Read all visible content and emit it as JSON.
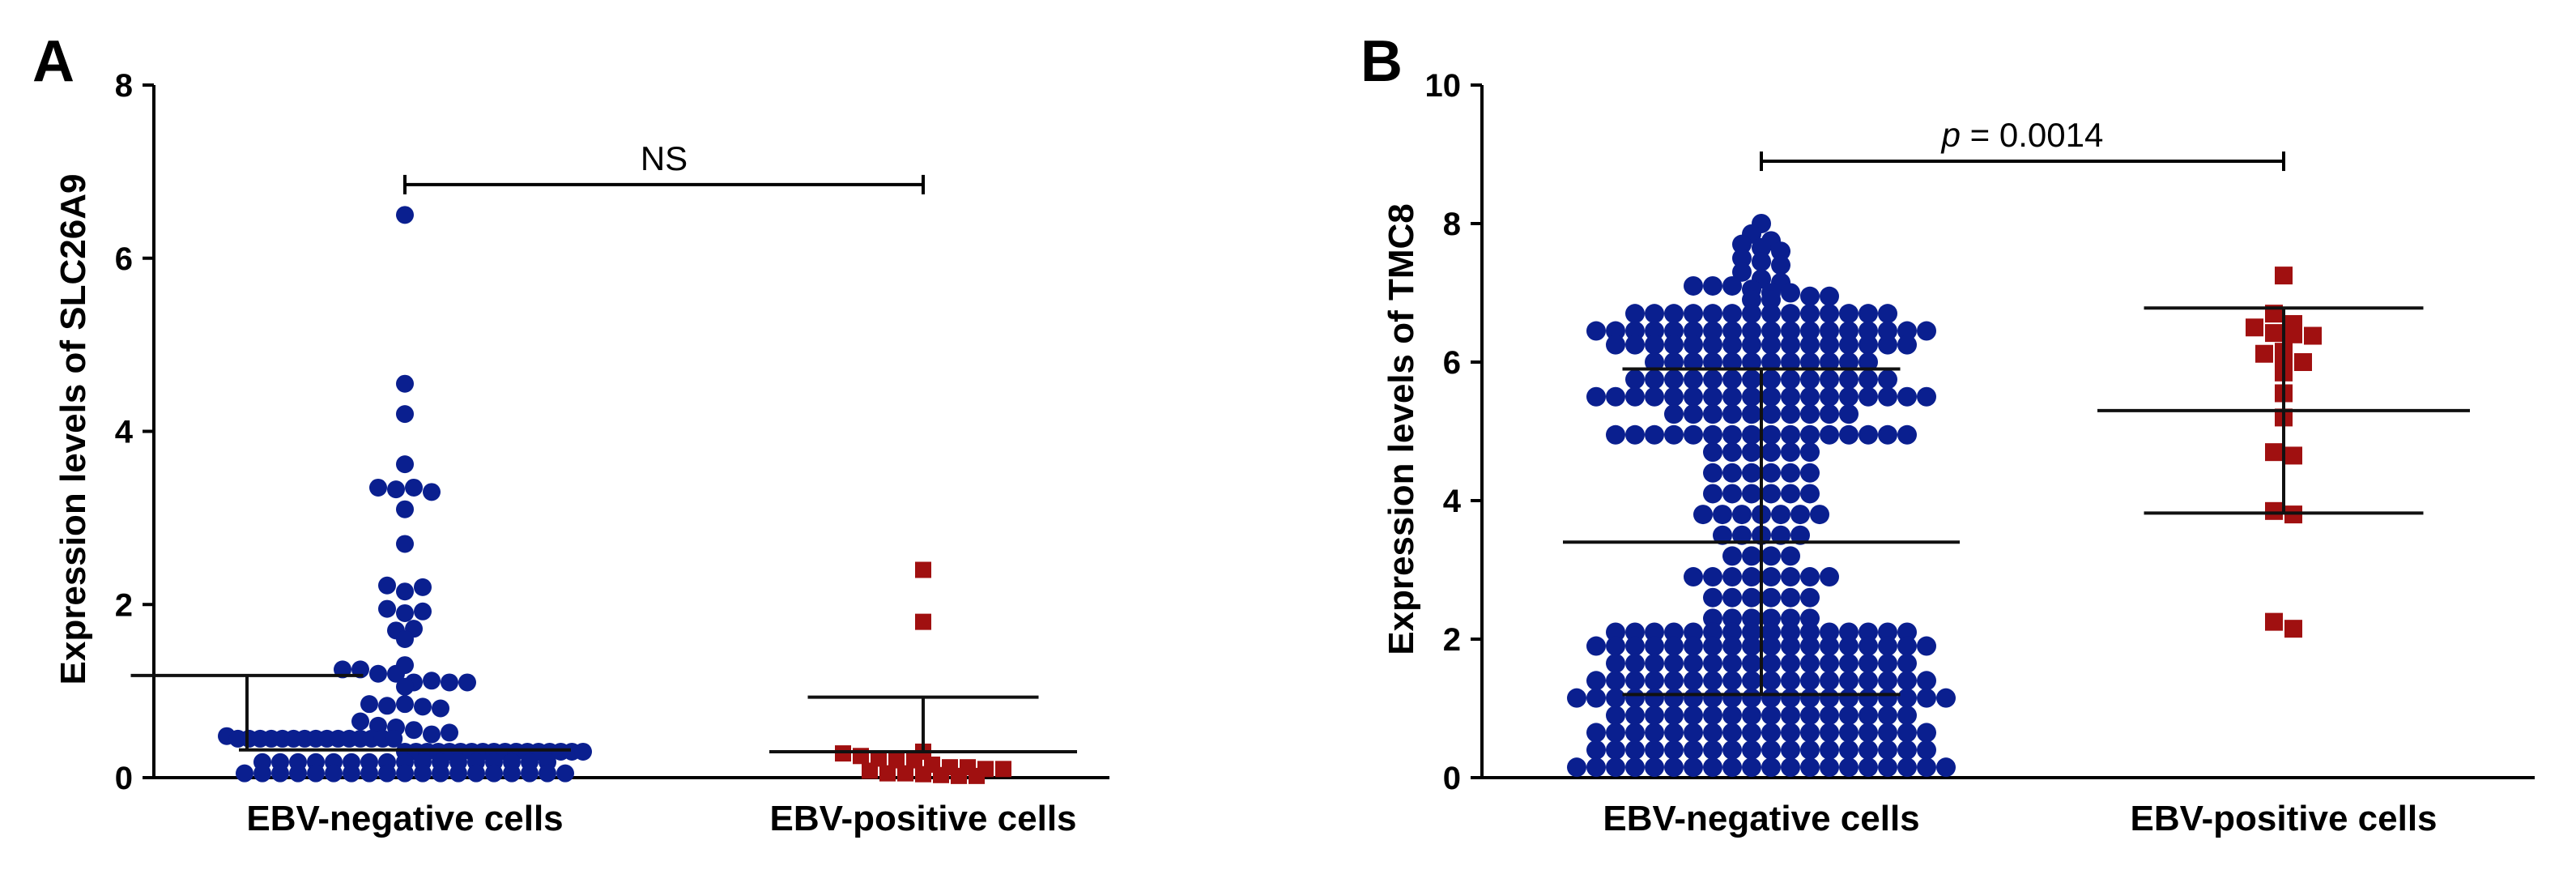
{
  "figure": {
    "panels": [
      {
        "letter": "A",
        "significance": {
          "prefix": "",
          "text": "NS"
        }
      },
      {
        "letter": "B",
        "significance": {
          "prefix": "p",
          "text": " = 0.0014"
        }
      }
    ]
  },
  "chart_data": [
    {
      "type": "scatter",
      "subtype": "dot-plot-with-mean-and-sd",
      "title": "",
      "xlabel": "",
      "ylabel": "Expression levels of SLC26A9",
      "ylim": [
        0,
        8
      ],
      "yticks": [
        0,
        2,
        4,
        6,
        8
      ],
      "categories": [
        "EBV-negative cells",
        "EBV-positive cells"
      ],
      "grid": false,
      "legend": "none",
      "series": [
        {
          "category": "EBV-negative cells",
          "marker": "circle",
          "color": "#0a1f8f",
          "mean": 0.32,
          "sd_upper": 1.18,
          "values": [
            6.5,
            4.55,
            4.2,
            3.62,
            3.35,
            3.33,
            3.35,
            3.3,
            3.1,
            2.7,
            2.22,
            2.15,
            2.2,
            1.95,
            1.9,
            1.92,
            1.7,
            1.72,
            1.6,
            1.3,
            1.25,
            1.25,
            1.2,
            1.2,
            1.1,
            1.12,
            1.1,
            1.05,
            1.1,
            0.85,
            0.83,
            0.85,
            0.82,
            0.8,
            0.65,
            0.6,
            0.58,
            0.55,
            0.5,
            0.52,
            0.48,
            0.45,
            0.45,
            0.45,
            0.45,
            0.45,
            0.45,
            0.45,
            0.45,
            0.45,
            0.45,
            0.45,
            0.45,
            0.45,
            0.45,
            0.45,
            0.3,
            0.3,
            0.3,
            0.3,
            0.3,
            0.3,
            0.3,
            0.3,
            0.3,
            0.3,
            0.3,
            0.3,
            0.3,
            0.3,
            0.3,
            0.3,
            0.3,
            0.18,
            0.18,
            0.18,
            0.18,
            0.18,
            0.18,
            0.18,
            0.18,
            0.18,
            0.18,
            0.18,
            0.18,
            0.18,
            0.18,
            0.18,
            0.18,
            0.18,
            0.05,
            0.05,
            0.05,
            0.05,
            0.05,
            0.05,
            0.05,
            0.05,
            0.05,
            0.05,
            0.05,
            0.05,
            0.05,
            0.05,
            0.05,
            0.05,
            0.05,
            0.05,
            0.05
          ]
        },
        {
          "category": "EBV-positive cells",
          "marker": "square",
          "color": "#a01010",
          "mean": 0.3,
          "sd_upper": 0.93,
          "values": [
            2.4,
            1.8,
            0.3,
            0.28,
            0.25,
            0.22,
            0.2,
            0.2,
            0.15,
            0.12,
            0.12,
            0.1,
            0.1,
            0.08,
            0.05,
            0.05,
            0.04,
            0.03,
            0.02,
            0.02
          ]
        }
      ],
      "significance": {
        "between": [
          "EBV-negative cells",
          "EBV-positive cells"
        ],
        "label": "NS",
        "y": 6.85
      }
    },
    {
      "type": "scatter",
      "subtype": "dot-plot-with-mean-and-sd",
      "title": "",
      "xlabel": "",
      "ylabel": "Expression levels of TMC8",
      "ylim": [
        0,
        10
      ],
      "yticks": [
        0,
        2,
        4,
        6,
        8,
        10
      ],
      "categories": [
        "EBV-negative cells",
        "EBV-positive cells"
      ],
      "grid": false,
      "legend": "none",
      "series": [
        {
          "category": "EBV-negative cells",
          "marker": "circle",
          "color": "#0a1f8f",
          "mean": 3.4,
          "sd_lower": 1.2,
          "sd_upper": 5.9,
          "values": [
            8.0,
            7.85,
            7.75,
            7.7,
            7.65,
            7.6,
            7.5,
            7.45,
            7.4,
            7.3,
            7.2,
            7.15,
            7.1,
            7.1,
            7.1,
            7.05,
            7.0,
            7.0,
            6.95,
            6.95,
            6.9,
            6.9,
            6.7,
            6.7,
            6.7,
            6.7,
            6.7,
            6.7,
            6.7,
            6.7,
            6.7,
            6.7,
            6.7,
            6.7,
            6.7,
            6.7,
            6.45,
            6.45,
            6.45,
            6.45,
            6.45,
            6.45,
            6.45,
            6.45,
            6.45,
            6.45,
            6.45,
            6.45,
            6.45,
            6.45,
            6.45,
            6.45,
            6.45,
            6.45,
            6.25,
            6.25,
            6.25,
            6.25,
            6.25,
            6.25,
            6.25,
            6.25,
            6.25,
            6.25,
            6.25,
            6.25,
            6.25,
            6.25,
            6.25,
            6.25,
            6.0,
            6.0,
            6.0,
            6.0,
            6.0,
            6.0,
            6.0,
            6.0,
            6.0,
            6.0,
            6.0,
            6.0,
            5.75,
            5.75,
            5.75,
            5.75,
            5.75,
            5.75,
            5.75,
            5.75,
            5.75,
            5.75,
            5.75,
            5.75,
            5.75,
            5.75,
            5.5,
            5.5,
            5.5,
            5.5,
            5.5,
            5.5,
            5.5,
            5.5,
            5.5,
            5.5,
            5.5,
            5.5,
            5.5,
            5.5,
            5.5,
            5.5,
            5.5,
            5.5,
            5.25,
            5.25,
            5.25,
            5.25,
            5.25,
            5.25,
            5.25,
            5.25,
            5.25,
            5.25,
            4.95,
            4.95,
            4.95,
            4.95,
            4.95,
            4.95,
            4.95,
            4.95,
            4.95,
            4.95,
            4.95,
            4.95,
            4.95,
            4.95,
            4.95,
            4.95,
            4.7,
            4.7,
            4.7,
            4.7,
            4.7,
            4.7,
            4.4,
            4.4,
            4.4,
            4.4,
            4.4,
            4.4,
            4.1,
            4.1,
            4.1,
            4.1,
            4.1,
            4.1,
            3.8,
            3.8,
            3.8,
            3.8,
            3.8,
            3.8,
            3.8,
            3.5,
            3.5,
            3.5,
            3.5,
            3.5,
            3.2,
            3.2,
            3.2,
            3.2,
            2.9,
            2.9,
            2.9,
            2.9,
            2.9,
            2.9,
            2.9,
            2.9,
            2.6,
            2.6,
            2.6,
            2.6,
            2.6,
            2.6,
            2.3,
            2.3,
            2.3,
            2.3,
            2.3,
            2.3,
            2.1,
            2.1,
            2.1,
            2.1,
            2.1,
            2.1,
            2.1,
            2.1,
            2.1,
            2.1,
            2.1,
            2.1,
            2.1,
            2.1,
            2.1,
            2.1,
            1.9,
            1.9,
            1.9,
            1.9,
            1.9,
            1.9,
            1.9,
            1.9,
            1.9,
            1.9,
            1.9,
            1.9,
            1.9,
            1.9,
            1.9,
            1.9,
            1.9,
            1.9,
            1.65,
            1.65,
            1.65,
            1.65,
            1.65,
            1.65,
            1.65,
            1.65,
            1.65,
            1.65,
            1.65,
            1.65,
            1.65,
            1.65,
            1.65,
            1.65,
            1.4,
            1.4,
            1.4,
            1.4,
            1.4,
            1.4,
            1.4,
            1.4,
            1.4,
            1.4,
            1.4,
            1.4,
            1.4,
            1.4,
            1.4,
            1.4,
            1.4,
            1.4,
            1.15,
            1.15,
            1.15,
            1.15,
            1.15,
            1.15,
            1.15,
            1.15,
            1.15,
            1.15,
            1.15,
            1.15,
            1.15,
            1.15,
            1.15,
            1.15,
            1.15,
            1.15,
            1.15,
            1.15,
            0.9,
            0.9,
            0.9,
            0.9,
            0.9,
            0.9,
            0.9,
            0.9,
            0.9,
            0.9,
            0.9,
            0.9,
            0.9,
            0.9,
            0.9,
            0.9,
            0.65,
            0.65,
            0.65,
            0.65,
            0.65,
            0.65,
            0.65,
            0.65,
            0.65,
            0.65,
            0.65,
            0.65,
            0.65,
            0.65,
            0.65,
            0.65,
            0.65,
            0.65,
            0.4,
            0.4,
            0.4,
            0.4,
            0.4,
            0.4,
            0.4,
            0.4,
            0.4,
            0.4,
            0.4,
            0.4,
            0.4,
            0.4,
            0.4,
            0.4,
            0.4,
            0.4,
            0.15,
            0.15,
            0.15,
            0.15,
            0.15,
            0.15,
            0.15,
            0.15,
            0.15,
            0.15,
            0.15,
            0.15,
            0.15,
            0.15,
            0.15,
            0.15,
            0.15,
            0.15,
            0.15,
            0.15
          ]
        },
        {
          "category": "EBV-positive cells",
          "marker": "square",
          "color": "#a01010",
          "mean": 5.3,
          "sd_lower": 3.82,
          "sd_upper": 6.78,
          "values": [
            7.25,
            6.7,
            6.55,
            6.5,
            6.42,
            6.4,
            6.38,
            6.15,
            6.12,
            6.05,
            6.0,
            5.85,
            5.55,
            5.2,
            4.7,
            4.65,
            3.85,
            3.8,
            2.25,
            2.15
          ]
        }
      ],
      "significance": {
        "between": [
          "EBV-negative cells",
          "EBV-positive cells"
        ],
        "label": "p = 0.0014",
        "y": 8.9
      }
    }
  ]
}
